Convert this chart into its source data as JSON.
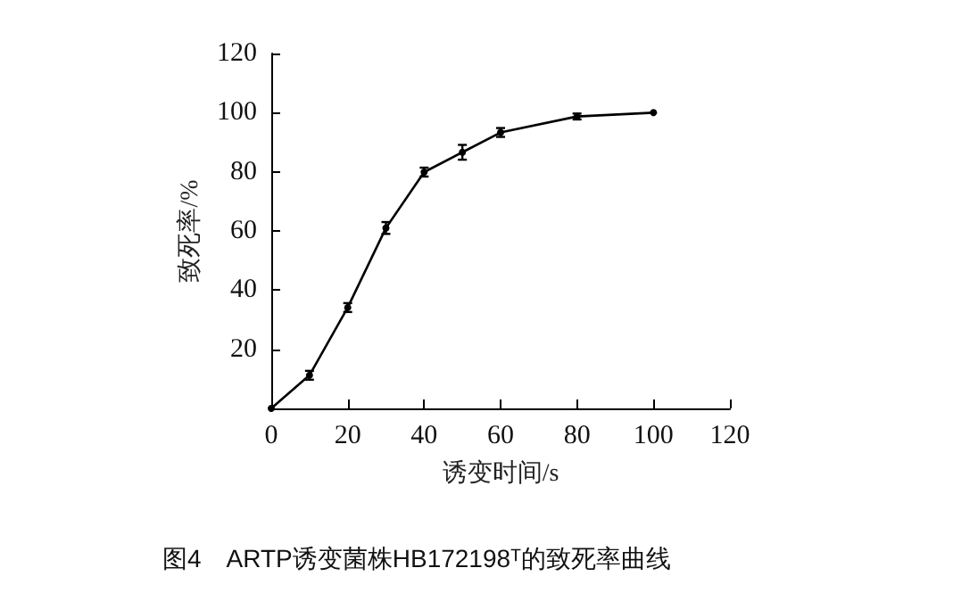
{
  "chart_data": {
    "type": "line",
    "title": "图4　ARTP诱变菌株HB172198ᵀ的致死率曲线",
    "xlabel": "诱变时间/s",
    "ylabel": "致死率/%",
    "x": [
      0,
      10,
      20,
      30,
      40,
      50,
      60,
      80,
      100
    ],
    "series": [
      {
        "color": "#000000",
        "values": [
          0,
          11.2,
          34.1,
          61,
          79.9,
          86.6,
          93.3,
          98.7,
          100
        ],
        "errors": [
          null,
          1.5,
          1.5,
          2,
          1.5,
          2.5,
          1.5,
          1,
          null
        ]
      }
    ],
    "xlim": [
      0,
      120
    ],
    "xticks": [
      0,
      20,
      40,
      60,
      80,
      100,
      120
    ],
    "ylim": [
      0,
      120
    ],
    "yticks": [
      20,
      40,
      60,
      80,
      100,
      120
    ],
    "grid": false,
    "marker": "circle",
    "line_style": "solid"
  }
}
